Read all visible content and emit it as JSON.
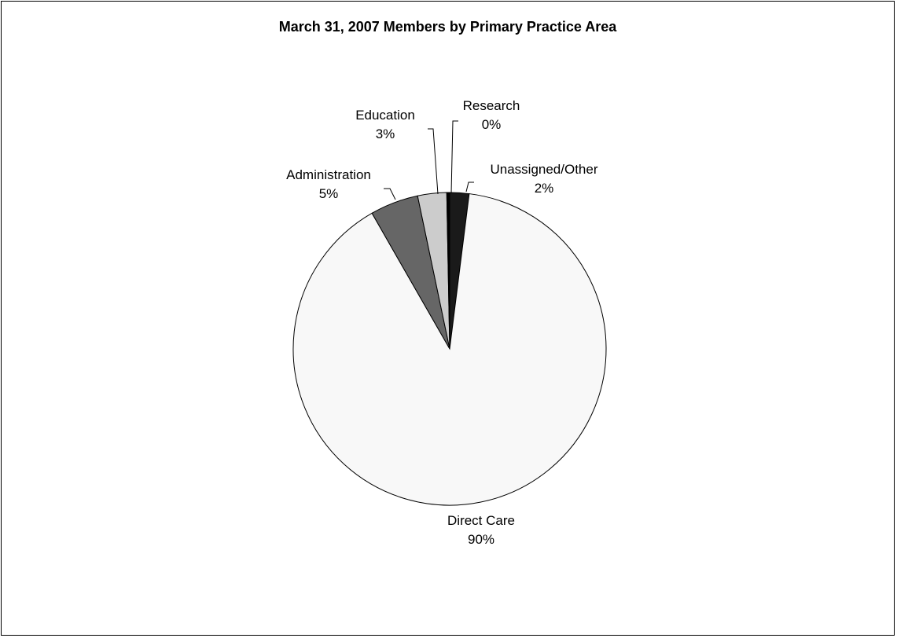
{
  "chart_data": {
    "type": "pie",
    "title": "March 31, 2007 Members by Primary Practice Area",
    "slices": [
      {
        "label": "Unassigned/Other",
        "value": 2,
        "display": "2%",
        "color": "#1a1a1a"
      },
      {
        "label": "Direct Care",
        "value": 90,
        "display": "90%",
        "color": "#f8f8f8"
      },
      {
        "label": "Administration",
        "value": 5,
        "display": "5%",
        "color": "#666666"
      },
      {
        "label": "Education",
        "value": 3,
        "display": "3%",
        "color": "#cccccc"
      },
      {
        "label": "Research",
        "value": 0.3,
        "display": "0%",
        "color": "#000000"
      }
    ]
  }
}
